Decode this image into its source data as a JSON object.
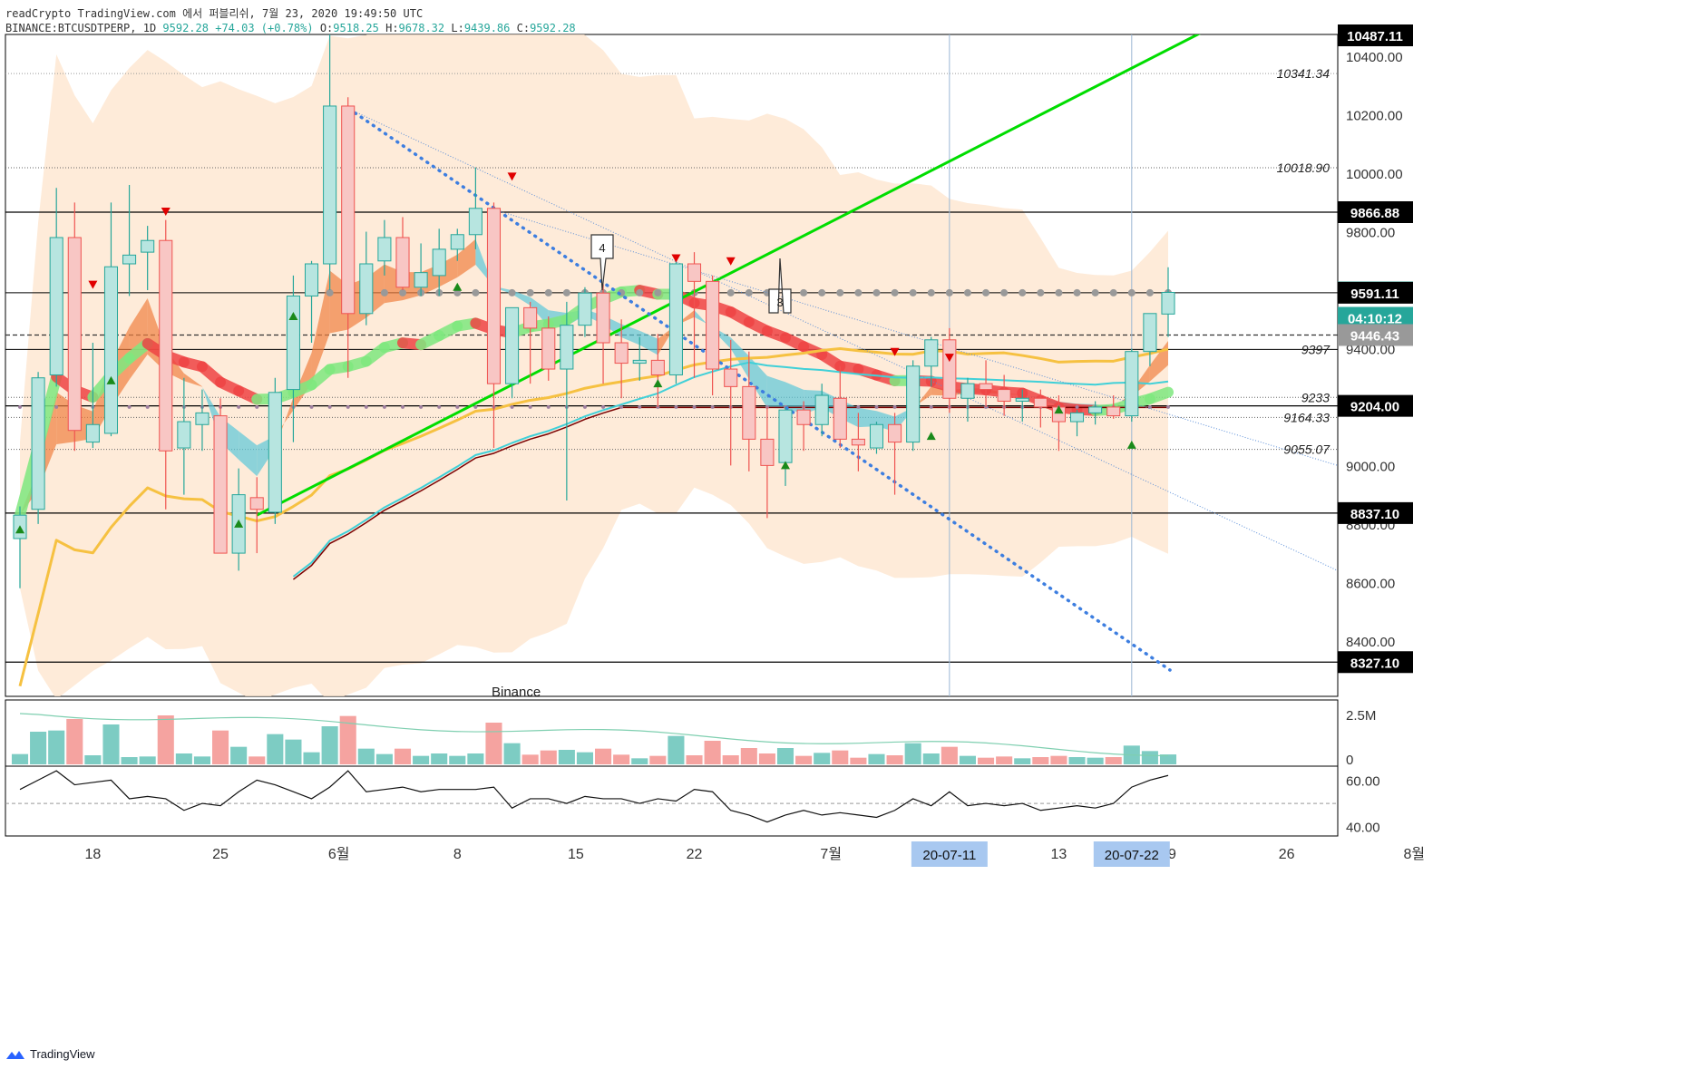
{
  "header": {
    "line1": "readCrypto TradingView.com 에서 퍼블리쉬, 7월 23, 2020 19:49:50 UTC",
    "symbol": "BINANCE:BTCUSDTPERP, 1D",
    "last": "9592.28",
    "change": "+74.03 (+0.78%)",
    "o_label": "O:",
    "o": "9518.25",
    "h_label": "H:",
    "h": "9678.32",
    "l_label": "L:",
    "l": "9439.86",
    "c_label": "C:",
    "c": "9592.28"
  },
  "brand": {
    "name": "TradingView"
  },
  "watermark": "Binance",
  "colors": {
    "up": "#26a69a",
    "down": "#ef5350",
    "trend_green": "#00dd00",
    "ma_red": "#ef4444",
    "ma_yellow": "#f6c141",
    "ma_cyan": "#40d0d8",
    "ma_dark": "#7a0000",
    "band": "#fde4cc",
    "blue_dot": "#3d7ee0",
    "price_tag": "#26a69a",
    "dark_tag": "#000000",
    "grey_tag": "#999999"
  },
  "chart_data": {
    "type": "candlestick",
    "x_ticks": [
      "18",
      "25",
      "6월",
      "8",
      "15",
      "22",
      "7월",
      "7",
      "13",
      "19",
      "26",
      "8월"
    ],
    "y_ticks": [
      "8400.00",
      "8600.00",
      "8800.00",
      "9000.00",
      "9200.00",
      "9400.00",
      "9600.00",
      "9800.00",
      "10000.00",
      "10200.00",
      "10400.00"
    ],
    "ylim": [
      8210,
      10475
    ],
    "price_tags": [
      {
        "label": "10487.11",
        "style": "dark"
      },
      {
        "label": "9866.88",
        "style": "dark"
      },
      {
        "label": "9592.28",
        "style": "green"
      },
      {
        "label": "04:10:12",
        "style": "green"
      },
      {
        "label": "9591.11",
        "style": "dark"
      },
      {
        "label": "9446.43",
        "style": "grey"
      },
      {
        "label": "9204.00",
        "style": "dark"
      },
      {
        "label": "8837.10",
        "style": "dark"
      },
      {
        "label": "8327.10",
        "style": "dark"
      }
    ],
    "level_labels": [
      "10341.34",
      "10018.90",
      "9397",
      "9233",
      "9164.33",
      "9055.07"
    ],
    "date_tags": [
      "20-07-11",
      "20-07-22"
    ],
    "callouts": [
      "4",
      "3"
    ],
    "candles": [
      {
        "o": 8750,
        "h": 8860,
        "l": 8580,
        "c": 8830
      },
      {
        "o": 8850,
        "h": 9320,
        "l": 8800,
        "c": 9300
      },
      {
        "o": 9310,
        "h": 9950,
        "l": 9270,
        "c": 9780
      },
      {
        "o": 9780,
        "h": 9900,
        "l": 9050,
        "c": 9120
      },
      {
        "o": 9080,
        "h": 9420,
        "l": 9060,
        "c": 9140
      },
      {
        "o": 9110,
        "h": 9900,
        "l": 9100,
        "c": 9680
      },
      {
        "o": 9690,
        "h": 9960,
        "l": 9580,
        "c": 9720
      },
      {
        "o": 9730,
        "h": 9820,
        "l": 9600,
        "c": 9770
      },
      {
        "o": 9770,
        "h": 9840,
        "l": 8850,
        "c": 9050
      },
      {
        "o": 9060,
        "h": 9300,
        "l": 8900,
        "c": 9150
      },
      {
        "o": 9140,
        "h": 9260,
        "l": 9050,
        "c": 9180
      },
      {
        "o": 9170,
        "h": 9230,
        "l": 8700,
        "c": 8700
      },
      {
        "o": 8700,
        "h": 8990,
        "l": 8640,
        "c": 8900
      },
      {
        "o": 8890,
        "h": 8960,
        "l": 8700,
        "c": 8850
      },
      {
        "o": 8840,
        "h": 9300,
        "l": 8800,
        "c": 9250
      },
      {
        "o": 9260,
        "h": 9650,
        "l": 9080,
        "c": 9580
      },
      {
        "o": 9580,
        "h": 9700,
        "l": 9420,
        "c": 9690
      },
      {
        "o": 9690,
        "h": 10520,
        "l": 9600,
        "c": 10230
      },
      {
        "o": 10230,
        "h": 10260,
        "l": 9300,
        "c": 9520
      },
      {
        "o": 9520,
        "h": 9800,
        "l": 9480,
        "c": 9690
      },
      {
        "o": 9700,
        "h": 9840,
        "l": 9650,
        "c": 9780
      },
      {
        "o": 9780,
        "h": 9850,
        "l": 9600,
        "c": 9610
      },
      {
        "o": 9610,
        "h": 9760,
        "l": 9580,
        "c": 9660
      },
      {
        "o": 9650,
        "h": 9810,
        "l": 9580,
        "c": 9740
      },
      {
        "o": 9740,
        "h": 9810,
        "l": 9700,
        "c": 9790
      },
      {
        "o": 9790,
        "h": 10020,
        "l": 9740,
        "c": 9880
      },
      {
        "o": 9880,
        "h": 9900,
        "l": 9060,
        "c": 9280
      },
      {
        "o": 9280,
        "h": 9520,
        "l": 9230,
        "c": 9540
      },
      {
        "o": 9540,
        "h": 9560,
        "l": 9280,
        "c": 9470
      },
      {
        "o": 9470,
        "h": 9510,
        "l": 9290,
        "c": 9330
      },
      {
        "o": 9330,
        "h": 9560,
        "l": 8880,
        "c": 9480
      },
      {
        "o": 9480,
        "h": 9610,
        "l": 9440,
        "c": 9590
      },
      {
        "o": 9590,
        "h": 9620,
        "l": 9280,
        "c": 9420
      },
      {
        "o": 9420,
        "h": 9500,
        "l": 9230,
        "c": 9350
      },
      {
        "o": 9350,
        "h": 9440,
        "l": 9290,
        "c": 9360
      },
      {
        "o": 9360,
        "h": 9450,
        "l": 9200,
        "c": 9310
      },
      {
        "o": 9310,
        "h": 9700,
        "l": 9280,
        "c": 9690
      },
      {
        "o": 9690,
        "h": 9730,
        "l": 9300,
        "c": 9630
      },
      {
        "o": 9630,
        "h": 9650,
        "l": 9240,
        "c": 9330
      },
      {
        "o": 9330,
        "h": 9430,
        "l": 9000,
        "c": 9270
      },
      {
        "o": 9270,
        "h": 9390,
        "l": 8980,
        "c": 9090
      },
      {
        "o": 9090,
        "h": 9200,
        "l": 8820,
        "c": 9000
      },
      {
        "o": 9010,
        "h": 9200,
        "l": 8930,
        "c": 9190
      },
      {
        "o": 9190,
        "h": 9220,
        "l": 9050,
        "c": 9140
      },
      {
        "o": 9140,
        "h": 9280,
        "l": 9100,
        "c": 9240
      },
      {
        "o": 9230,
        "h": 9340,
        "l": 9060,
        "c": 9090
      },
      {
        "o": 9090,
        "h": 9180,
        "l": 8980,
        "c": 9070
      },
      {
        "o": 9060,
        "h": 9150,
        "l": 9040,
        "c": 9140
      },
      {
        "o": 9140,
        "h": 9180,
        "l": 8900,
        "c": 9080
      },
      {
        "o": 9080,
        "h": 9360,
        "l": 9050,
        "c": 9340
      },
      {
        "o": 9340,
        "h": 9440,
        "l": 9270,
        "c": 9430
      },
      {
        "o": 9430,
        "h": 9470,
        "l": 9180,
        "c": 9230
      },
      {
        "o": 9230,
        "h": 9300,
        "l": 9150,
        "c": 9280
      },
      {
        "o": 9280,
        "h": 9360,
        "l": 9200,
        "c": 9260
      },
      {
        "o": 9260,
        "h": 9310,
        "l": 9170,
        "c": 9220
      },
      {
        "o": 9220,
        "h": 9260,
        "l": 9150,
        "c": 9230
      },
      {
        "o": 9230,
        "h": 9260,
        "l": 9130,
        "c": 9200
      },
      {
        "o": 9200,
        "h": 9240,
        "l": 9050,
        "c": 9150
      },
      {
        "o": 9150,
        "h": 9190,
        "l": 9100,
        "c": 9180
      },
      {
        "o": 9180,
        "h": 9220,
        "l": 9140,
        "c": 9200
      },
      {
        "o": 9200,
        "h": 9240,
        "l": 9160,
        "c": 9170
      },
      {
        "o": 9170,
        "h": 9400,
        "l": 9150,
        "c": 9390
      },
      {
        "o": 9390,
        "h": 9510,
        "l": 9340,
        "c": 9520
      },
      {
        "o": 9518.25,
        "h": 9678.32,
        "l": 9439.86,
        "c": 9592.28
      }
    ],
    "volume_axis": [
      "2.5M",
      "0"
    ],
    "rsi_axis": [
      "60.00",
      "40.00"
    ],
    "rsi": [
      56,
      60,
      64,
      58,
      59,
      60,
      52,
      53,
      52,
      47,
      50,
      49,
      55,
      60,
      58,
      55,
      52,
      57,
      64,
      55,
      56,
      57,
      55,
      56,
      56,
      56,
      57,
      48,
      52,
      52,
      50,
      53,
      52,
      52,
      50,
      52,
      51,
      56,
      55,
      47,
      45,
      42,
      45,
      47,
      45,
      46,
      45,
      44,
      47,
      52,
      49,
      55,
      49,
      50,
      49,
      50,
      47,
      48,
      49,
      48,
      50,
      57,
      60,
      62
    ]
  }
}
